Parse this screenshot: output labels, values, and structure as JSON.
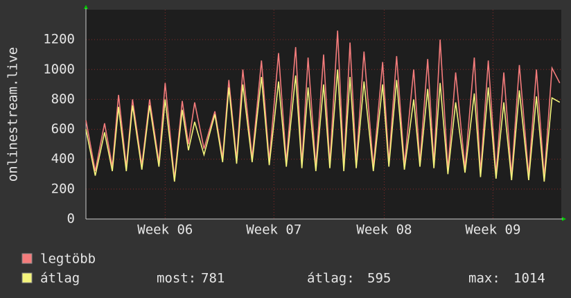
{
  "chart_data": {
    "type": "line",
    "y_label": "onlinestream.live",
    "x": [
      0.0,
      0.6,
      1.2,
      1.7,
      2.1,
      2.6,
      3.0,
      3.6,
      4.1,
      4.7,
      5.1,
      5.7,
      6.2,
      6.6,
      7.0,
      7.6,
      8.3,
      8.8,
      9.2,
      9.7,
      10.1,
      10.7,
      11.3,
      11.8,
      12.4,
      12.9,
      13.5,
      13.9,
      14.3,
      14.8,
      15.3,
      15.7,
      16.2,
      16.6,
      17.0,
      17.4,
      17.9,
      18.5,
      19.1,
      19.5,
      20.0,
      20.5,
      21.1,
      21.5,
      22.0,
      22.4,
      22.8,
      23.3,
      23.8,
      24.4,
      25.0,
      25.4,
      25.9,
      26.4,
      26.9,
      27.4,
      27.9,
      28.5,
      29.0,
      29.5,
      30.0,
      30.5
    ],
    "series": [
      {
        "name": "legtöbb",
        "color": "#f47c7c",
        "values": [
          660,
          320,
          640,
          350,
          830,
          350,
          800,
          360,
          800,
          380,
          910,
          270,
          790,
          500,
          780,
          470,
          720,
          410,
          930,
          400,
          1000,
          410,
          1060,
          390,
          1110,
          380,
          1150,
          370,
          1080,
          350,
          1100,
          370,
          1260,
          350,
          1180,
          370,
          1120,
          350,
          1050,
          380,
          1090,
          360,
          1000,
          380,
          1070,
          370,
          1200,
          330,
          980,
          340,
          1080,
          310,
          1060,
          300,
          980,
          290,
          1030,
          290,
          1000,
          280,
          1010,
          910
        ]
      },
      {
        "name": "átlag",
        "color": "#f4f47c",
        "values": [
          600,
          290,
          580,
          320,
          750,
          320,
          760,
          330,
          760,
          350,
          800,
          250,
          730,
          460,
          650,
          430,
          700,
          380,
          880,
          370,
          900,
          380,
          950,
          360,
          920,
          350,
          960,
          340,
          880,
          320,
          900,
          340,
          1000,
          320,
          950,
          340,
          920,
          320,
          900,
          350,
          930,
          330,
          800,
          350,
          870,
          340,
          910,
          300,
          780,
          310,
          840,
          280,
          880,
          270,
          780,
          260,
          860,
          260,
          820,
          250,
          810,
          781
        ]
      }
    ],
    "xlim": [
      0,
      30.6
    ],
    "xticks": [
      {
        "value": 5.1,
        "label": "Week 06"
      },
      {
        "value": 12.1,
        "label": "Week 07"
      },
      {
        "value": 19.2,
        "label": "Week 08"
      },
      {
        "value": 26.2,
        "label": "Week 09"
      }
    ],
    "ylim": [
      0,
      1400
    ],
    "yticks": [
      0,
      200,
      400,
      600,
      800,
      1000,
      1200
    ],
    "grid": true,
    "stats": [
      {
        "label": "most:",
        "value": 781
      },
      {
        "label": "átlag:",
        "value": 595
      },
      {
        "label": "max:",
        "value": 1014
      }
    ]
  }
}
